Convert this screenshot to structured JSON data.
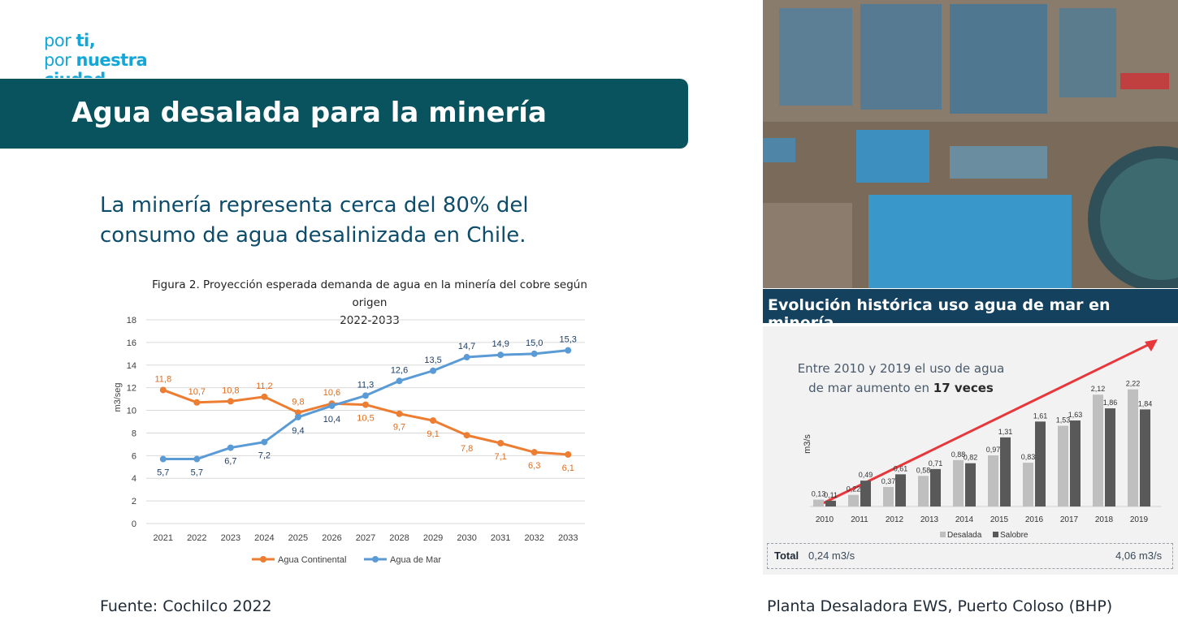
{
  "logo": {
    "line1_a": "por ",
    "line1_b": "ti,",
    "line2_a": "por ",
    "line2_b": "nuestra",
    "line3": "ciudad"
  },
  "banner": {
    "title": "Agua desalada para la minería"
  },
  "subtitle": "La minería representa cerca del 80% del consumo de agua desalinizada en Chile.",
  "figure": {
    "title_line1": "Figura 2. Proyección esperada demanda de agua en la minería del cobre según origen",
    "title_line2": "2022-2033"
  },
  "source_caption": "Fuente: Cochilco 2022",
  "photo_caption": "Planta Desaladora EWS, Puerto Coloso (BHP)",
  "photo_band_title": "Evolución histórica uso agua de mar en minería",
  "panel": {
    "note_line1": "Entre 2010 y 2019 el uso de agua",
    "note_line2_a": "de mar aumento en ",
    "note_line2_b": "17 veces",
    "total_label": "Total",
    "total_start": "0,24 m3/s",
    "total_end": "4,06 m3/s"
  },
  "colors": {
    "continental": "#ed7d31",
    "mar": "#5b9bd5",
    "banner": "#08535e",
    "desalada": "#bfbfbf",
    "salobre": "#595959",
    "arrow": "#e8373b"
  },
  "chart_data": [
    {
      "type": "line",
      "ylabel": "m3/seg",
      "ylim": [
        0,
        18
      ],
      "yticks": [
        0,
        2,
        4,
        6,
        8,
        10,
        12,
        14,
        16,
        18
      ],
      "x": [
        "2021",
        "2022",
        "2023",
        "2024",
        "2025",
        "2026",
        "2027",
        "2028",
        "2029",
        "2030",
        "2031",
        "2032",
        "2033"
      ],
      "series": [
        {
          "name": "Agua Continental",
          "values": [
            11.8,
            10.7,
            10.8,
            11.2,
            9.8,
            10.6,
            10.5,
            9.7,
            9.1,
            7.8,
            7.1,
            6.3,
            6.1
          ],
          "labels": [
            "11,8",
            "10,7",
            "10,8",
            "11,2",
            "9,8",
            "10,6",
            "10,5",
            "9,7",
            "9,1",
            "7,8",
            "7,1",
            "6,3",
            "6,1"
          ]
        },
        {
          "name": "Agua de Mar",
          "values": [
            5.7,
            5.7,
            6.7,
            7.2,
            9.4,
            10.4,
            11.3,
            12.6,
            13.5,
            14.7,
            14.9,
            15.0,
            15.3
          ],
          "labels": [
            "5,7",
            "5,7",
            "6,7",
            "7,2",
            "9,4",
            "10,4",
            "11,3",
            "12,6",
            "13,5",
            "14,7",
            "14,9",
            "15,0",
            "15,3"
          ]
        }
      ],
      "grid": true,
      "legend": "bottom"
    },
    {
      "type": "bar",
      "ylabel": "m3/s",
      "categories": [
        "2010",
        "2011",
        "2012",
        "2013",
        "2014",
        "2015",
        "2016",
        "2017",
        "2018",
        "2019"
      ],
      "series": [
        {
          "name": "Desalada",
          "values": [
            0.13,
            0.22,
            0.37,
            0.58,
            0.88,
            0.97,
            0.83,
            1.53,
            2.12,
            2.22
          ],
          "labels": [
            "0,13",
            "0,22",
            "0,37",
            "0,58",
            "0,88",
            "0,97",
            "0,83",
            "1,53",
            "2,12",
            "2,22"
          ]
        },
        {
          "name": "Salobre",
          "values": [
            0.11,
            0.49,
            0.61,
            0.71,
            0.82,
            1.31,
            1.61,
            1.63,
            1.86,
            1.84
          ],
          "labels": [
            "0,11",
            "0,49",
            "0,61",
            "0,71",
            "0,82",
            "1,31",
            "1,61",
            "1,63",
            "1,86",
            "1,84"
          ]
        }
      ],
      "legend": "bottom"
    }
  ]
}
